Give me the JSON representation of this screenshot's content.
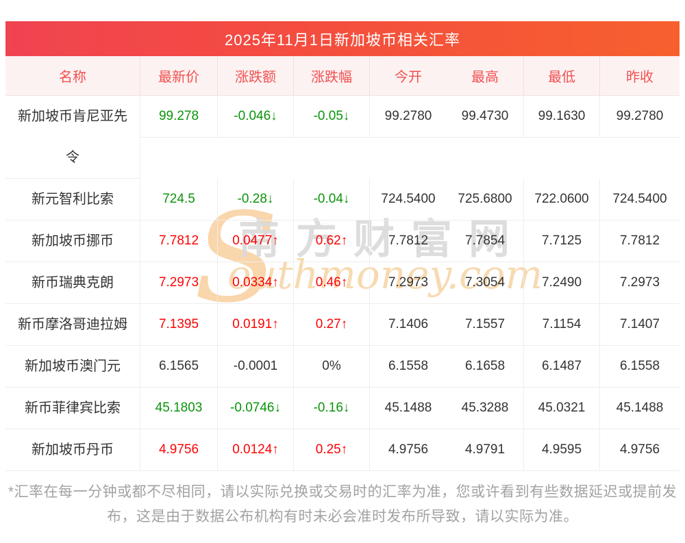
{
  "banner": {
    "title": "2025年11月1日新加坡币相关汇率"
  },
  "table": {
    "headers": [
      "名称",
      "最新价",
      "涨跌额",
      "涨跌幅",
      "今开",
      "最高",
      "最低",
      "昨收"
    ],
    "rows": [
      {
        "name": "新加坡币肯尼亚先令",
        "latest": "99.278",
        "change": "-0.046↓",
        "pct": "-0.05↓",
        "open": "99.2780",
        "high": "99.4730",
        "low": "99.1630",
        "prev": "99.2780",
        "trend": "down"
      },
      {
        "name": "新元智利比索",
        "latest": "724.5",
        "change": "-0.28↓",
        "pct": "-0.04↓",
        "open": "724.5400",
        "high": "725.6800",
        "low": "722.0600",
        "prev": "724.5400",
        "trend": "down"
      },
      {
        "name": "新加坡币挪币",
        "latest": "7.7812",
        "change": "0.0477↑",
        "pct": "0.62↑",
        "open": "7.7812",
        "high": "7.7854",
        "low": "7.7125",
        "prev": "7.7812",
        "trend": "up"
      },
      {
        "name": "新币瑞典克朗",
        "latest": "7.2973",
        "change": "0.0334↑",
        "pct": "0.46↑",
        "open": "7.2973",
        "high": "7.3054",
        "low": "7.2490",
        "prev": "7.2973",
        "trend": "up"
      },
      {
        "name": "新币摩洛哥迪拉姆",
        "latest": "7.1395",
        "change": "0.0191↑",
        "pct": "0.27↑",
        "open": "7.1406",
        "high": "7.1557",
        "low": "7.1154",
        "prev": "7.1407",
        "trend": "up"
      },
      {
        "name": "新加坡币澳门元",
        "latest": "6.1565",
        "change": "-0.0001",
        "pct": "0%",
        "open": "6.1558",
        "high": "6.1658",
        "low": "6.1487",
        "prev": "6.1558",
        "trend": "flat"
      },
      {
        "name": "新币菲律宾比索",
        "latest": "45.1803",
        "change": "-0.0746↓",
        "pct": "-0.16↓",
        "open": "45.1488",
        "high": "45.3288",
        "low": "45.0321",
        "prev": "45.1488",
        "trend": "down"
      },
      {
        "name": "新加坡币丹币",
        "latest": "4.9756",
        "change": "0.0124↑",
        "pct": "0.25↑",
        "open": "4.9756",
        "high": "4.9791",
        "low": "4.9595",
        "prev": "4.9756",
        "trend": "up"
      }
    ]
  },
  "watermark": {
    "s": "S",
    "cn": "南方财富网",
    "en": "outhmoney.com"
  },
  "footer": {
    "note": "*汇率在每一分钟或都不尽相同，请以实际兑换或交易时的汇率为准，您或许看到有些数据延迟或提前发布，这是由于数据公布机构有时未必会准时发布所导致，请以实际为准。"
  },
  "colors": {
    "up": "#fc0303",
    "down": "#0a930a",
    "flat": "#333333",
    "banner_left": "#ef4451",
    "banner_right": "#f7602e",
    "header_bg": "#fdf2f2",
    "header_text": "#f25050"
  }
}
